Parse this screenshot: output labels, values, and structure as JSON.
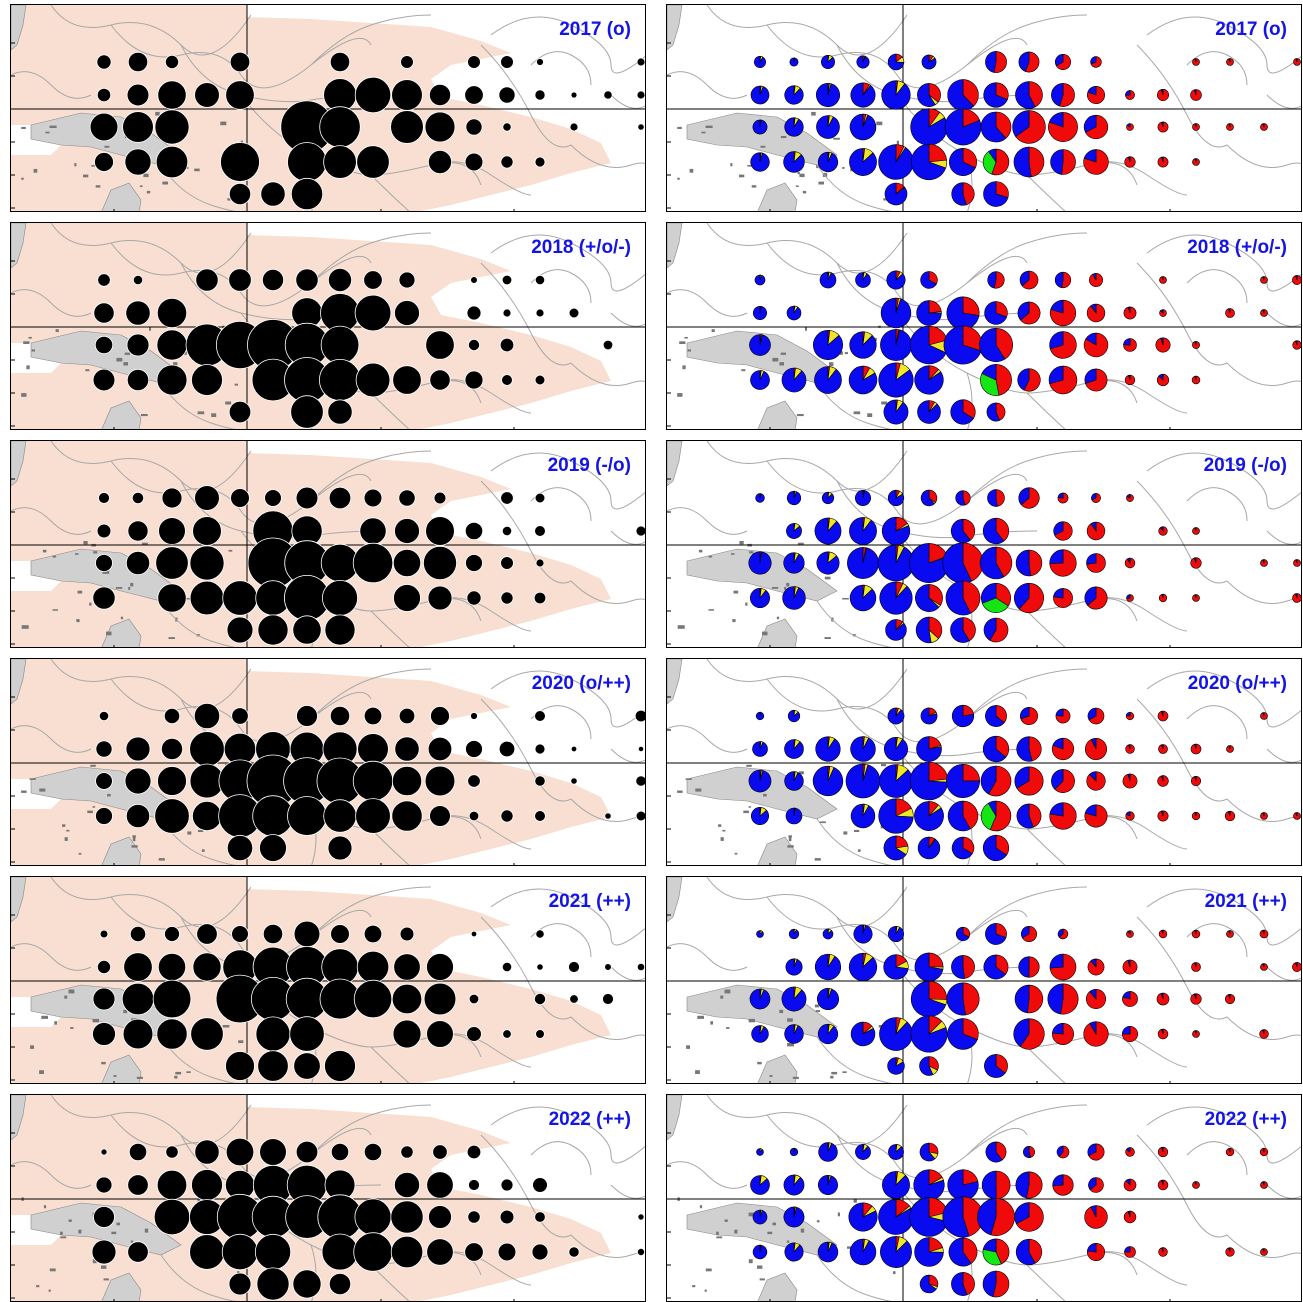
{
  "colors": {
    "fishing_area": "#f8dfd1",
    "land": "#d0d0d0",
    "eez_lines": "#a8a8a8",
    "total_catch": "#000000",
    "pie_blue": "#0a0af0",
    "pie_red": "#f00a0a",
    "pie_yellow": "#f0e628",
    "pie_green": "#14e614",
    "label": "#1414e6"
  },
  "years": [
    {
      "label": "2017 (o)"
    },
    {
      "label": "2018 (+/o/-)"
    },
    {
      "label": "2019 (-/o)"
    },
    {
      "label": "2020 (o/++)"
    },
    {
      "label": "2021 (++)"
    },
    {
      "label": "2022 (++)"
    }
  ]
}
